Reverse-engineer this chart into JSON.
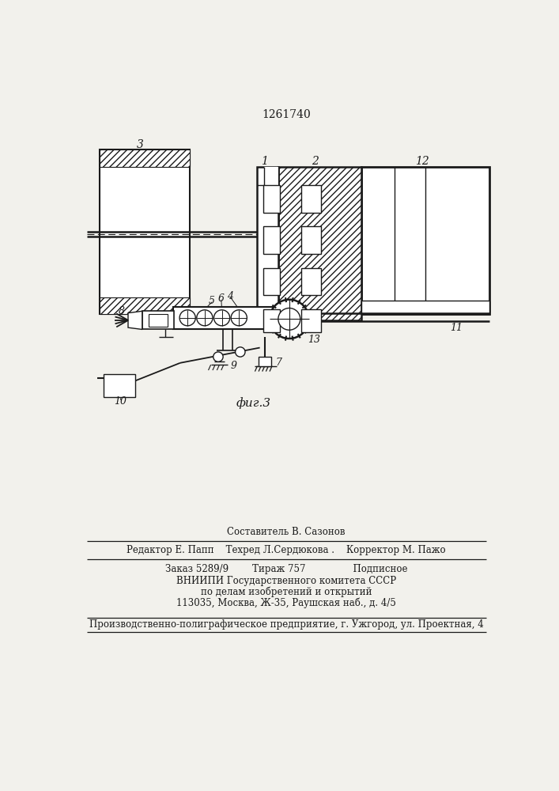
{
  "patent_number": "1261740",
  "fig_label": "фиг.3",
  "bg_color": "#f2f1ec",
  "line_color": "#1a1a1a",
  "bottom_text_1a": "Составитель В. Сазонов",
  "bottom_text_2": "Редактор Е. Папп    Техред Л.Сердюкова .    Корректор М. Пажо",
  "bottom_text_3": "Заказ 5289/9        Тираж 757                Подписное",
  "bottom_text_4": "ВНИИПИ Государственного комитета СССР",
  "bottom_text_5": "по делам изобретений и открытий",
  "bottom_text_6": "113035, Москва, Ж-35, Раушская наб., д. 4/5",
  "bottom_text_7": "Производственно-полиграфическое предприятие, г. Ужгород, ул. Проектная, 4"
}
